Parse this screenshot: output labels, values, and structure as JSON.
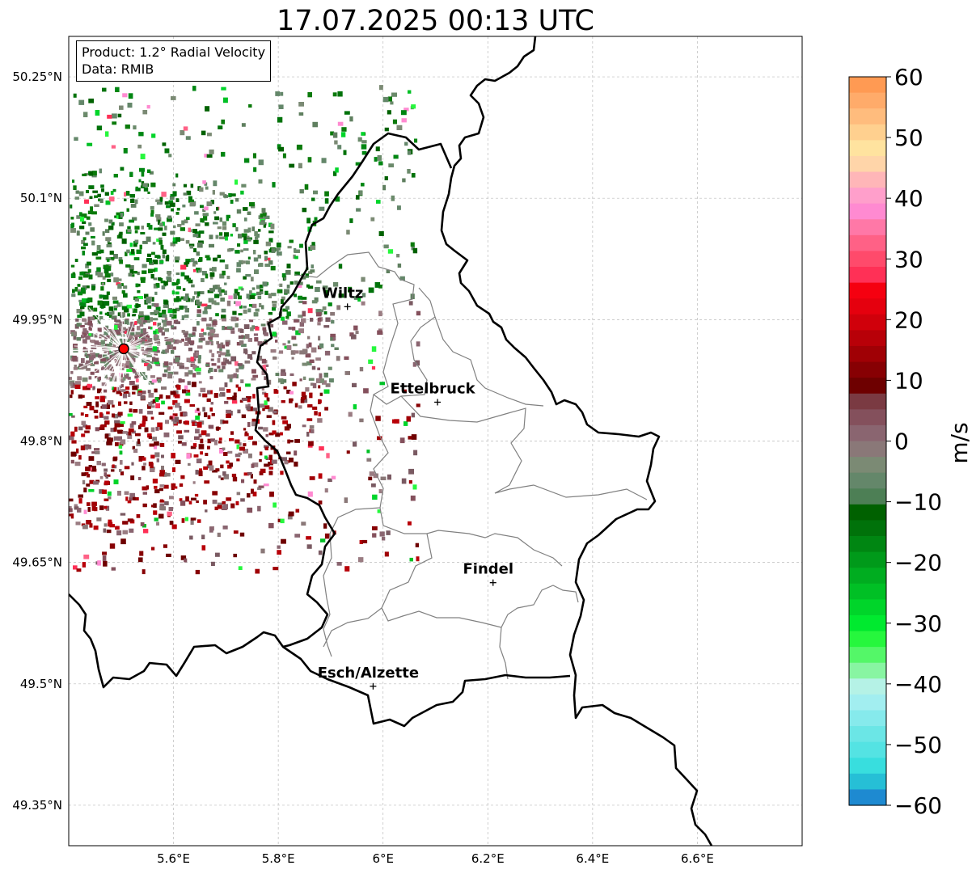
{
  "title": "17.07.2025 00:13 UTC",
  "info_box": {
    "product": "Product: 1.2° Radial Velocity",
    "data": "Data: RMIB"
  },
  "axes": {
    "lat_ticks": [
      "50.25°N",
      "50.1°N",
      "49.95°N",
      "49.8°N",
      "49.65°N",
      "49.5°N",
      "49.35°N"
    ],
    "lon_ticks": [
      "5.6°E",
      "5.8°E",
      "6°E",
      "6.2°E",
      "6.4°E",
      "6.6°E"
    ],
    "lat_range": [
      49.3,
      50.3
    ],
    "lon_range": [
      5.4,
      6.8
    ],
    "grid": true
  },
  "colorbar": {
    "label": "m/s",
    "ticks": [
      "60",
      "50",
      "40",
      "30",
      "20",
      "10",
      "0",
      "−10",
      "−20",
      "−30",
      "−40",
      "−50",
      "−60"
    ],
    "range": [
      -60,
      60
    ],
    "colors": [
      "#ff9a53",
      "#ffab6a",
      "#ffbc7d",
      "#ffd08f",
      "#ffe39f",
      "#ffd5a9",
      "#ffb6b8",
      "#ff9fcb",
      "#ff8ad1",
      "#ff78a7",
      "#ff6186",
      "#ff4a6b",
      "#ff3056",
      "#f50010",
      "#e5000e",
      "#d0000b",
      "#b80008",
      "#a00005",
      "#870003",
      "#6e0000",
      "#7a3a42",
      "#84505c",
      "#8a6570",
      "#8a7878",
      "#7b8a74",
      "#64876a",
      "#4d7f55",
      "#006100",
      "#00720a",
      "#008612",
      "#009a1a",
      "#00ad20",
      "#00c025",
      "#00d52a",
      "#00ea2f",
      "#26f73d",
      "#54f768",
      "#88f5a2",
      "#b5f2e6",
      "#a2eef0",
      "#86eaec",
      "#6be6e6",
      "#54e3e3",
      "#38dede",
      "#26bfd6",
      "#1e8ad1"
    ]
  },
  "radar": {
    "name": "radar-site",
    "lon": 5.505,
    "lat": 49.914,
    "color": "#ff0000"
  },
  "cities": [
    {
      "name": "Wiltz",
      "lon": 5.932,
      "lat": 49.966
    },
    {
      "name": "Ettelbruck",
      "lon": 6.104,
      "lat": 49.848
    },
    {
      "name": "Findel",
      "lon": 6.21,
      "lat": 49.625
    },
    {
      "name": "Esch/Alzette",
      "lon": 5.981,
      "lat": 49.497
    }
  ]
}
